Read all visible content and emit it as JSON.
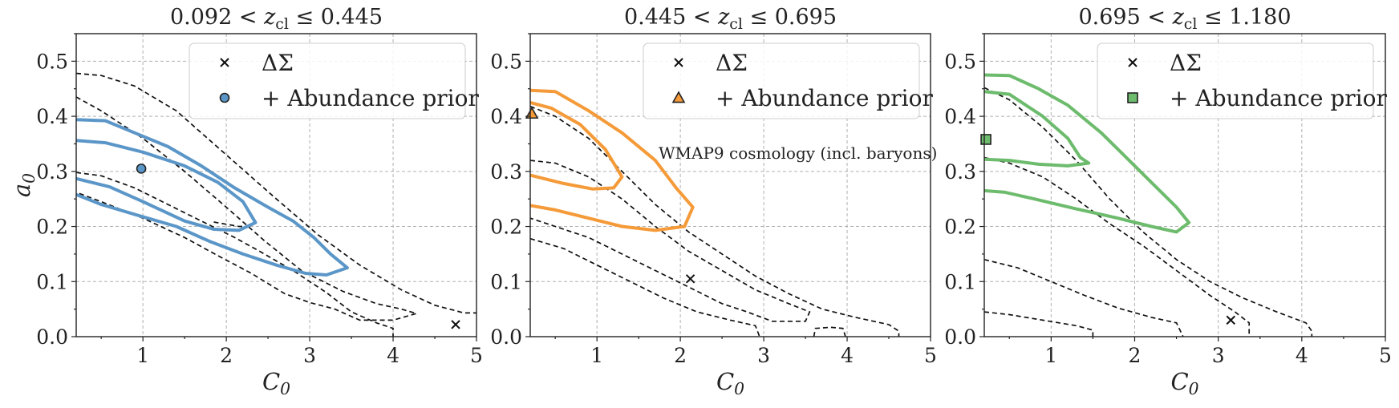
{
  "chart_data": [
    {
      "type": "scatter",
      "title": "0.092 < z_cl ≤ 0.445",
      "xlabel": "C_0",
      "ylabel": "a_0",
      "xlim": [
        0.2,
        5
      ],
      "ylim": [
        0,
        0.55
      ],
      "xticks": [
        "1",
        "2",
        "3",
        "4",
        "5"
      ],
      "yticks": [
        "0.0",
        "0.1",
        "0.2",
        "0.3",
        "0.4",
        "0.5"
      ],
      "grid": true,
      "color": "#5b96c8",
      "marker": "circle",
      "legend": {
        "position": "top-right",
        "entries": [
          "ΔΣ",
          "+ Abundance prior"
        ]
      },
      "delta_sigma_point": {
        "x": 4.75,
        "y": 0.022
      },
      "prior_point": {
        "x": 0.98,
        "y": 0.305
      },
      "black_contours": [
        [
          [
            0.2,
            0.478
          ],
          [
            0.5,
            0.474
          ],
          [
            0.9,
            0.455
          ],
          [
            1.4,
            0.41
          ],
          [
            2,
            0.33
          ],
          [
            2.6,
            0.25
          ],
          [
            3.1,
            0.185
          ],
          [
            3.6,
            0.13
          ],
          [
            4.1,
            0.085
          ],
          [
            4.5,
            0.057
          ],
          [
            4.85,
            0.043
          ],
          [
            5,
            0.043
          ]
        ],
        [
          [
            0.2,
            0.435
          ],
          [
            0.5,
            0.41
          ],
          [
            1,
            0.36
          ],
          [
            1.5,
            0.3
          ],
          [
            2,
            0.235
          ],
          [
            2.45,
            0.175
          ],
          [
            2.9,
            0.12
          ],
          [
            3.4,
            0.082
          ],
          [
            3.8,
            0.06
          ],
          [
            4.1,
            0.05
          ],
          [
            4.28,
            0.042
          ],
          [
            4,
            0.03
          ],
          [
            3.6,
            0.03
          ],
          [
            3.3,
            0.05
          ],
          [
            3,
            0.062
          ],
          [
            2.7,
            0.078
          ],
          [
            2.3,
            0.115
          ],
          [
            1.9,
            0.147
          ],
          [
            1.5,
            0.18
          ],
          [
            1,
            0.215
          ],
          [
            0.5,
            0.245
          ],
          [
            0.2,
            0.262
          ]
        ],
        [
          [
            0.2,
            0.298
          ],
          [
            0.5,
            0.292
          ],
          [
            0.9,
            0.27
          ],
          [
            1.3,
            0.24
          ],
          [
            1.7,
            0.21
          ],
          [
            2.1,
            0.18
          ],
          [
            2.4,
            0.155
          ],
          [
            2.8,
            0.12
          ],
          [
            3.2,
            0.08
          ],
          [
            3.5,
            0.045
          ],
          [
            3.8,
            0.025
          ],
          [
            4,
            0.015
          ],
          [
            4,
            0
          ]
        ],
        [
          [
            1.85,
            0.208
          ],
          [
            2.15,
            0.2
          ],
          [
            2.3,
            0.2
          ]
        ]
      ],
      "colored_contours": [
        [
          [
            0.2,
            0.394
          ],
          [
            0.55,
            0.392
          ],
          [
            0.9,
            0.37
          ],
          [
            1.3,
            0.345
          ],
          [
            1.7,
            0.31
          ],
          [
            2.1,
            0.27
          ],
          [
            2.5,
            0.235
          ],
          [
            2.8,
            0.21
          ],
          [
            3.05,
            0.18
          ],
          [
            3.25,
            0.15
          ],
          [
            3.45,
            0.125
          ],
          [
            3.2,
            0.112
          ],
          [
            2.95,
            0.115
          ],
          [
            2.6,
            0.13
          ],
          [
            2.2,
            0.15
          ],
          [
            1.8,
            0.173
          ],
          [
            1.4,
            0.2
          ],
          [
            0.9,
            0.222
          ],
          [
            0.5,
            0.24
          ],
          [
            0.2,
            0.258
          ]
        ],
        [
          [
            0.2,
            0.356
          ],
          [
            0.55,
            0.352
          ],
          [
            1,
            0.335
          ],
          [
            1.5,
            0.31
          ],
          [
            1.9,
            0.28
          ],
          [
            2.2,
            0.245
          ],
          [
            2.35,
            0.207
          ],
          [
            2.15,
            0.193
          ],
          [
            1.85,
            0.195
          ],
          [
            1.5,
            0.21
          ],
          [
            1,
            0.245
          ],
          [
            0.6,
            0.272
          ],
          [
            0.2,
            0.287
          ]
        ]
      ]
    },
    {
      "type": "scatter",
      "title": "0.445 < z_cl ≤ 0.695",
      "xlabel": "C_0",
      "ylabel": "",
      "xlim": [
        0.2,
        5
      ],
      "ylim": [
        0,
        0.55
      ],
      "xticks": [
        "1",
        "2",
        "3",
        "4",
        "5"
      ],
      "yticks": [
        "0.0",
        "0.1",
        "0.2",
        "0.3",
        "0.4",
        "0.5"
      ],
      "grid": true,
      "color": "#f59a38",
      "marker": "triangle",
      "legend": {
        "position": "top-right",
        "entries": [
          "ΔΣ",
          "+ Abundance prior"
        ]
      },
      "annotation": "WMAP9 cosmology (incl. baryons)",
      "delta_sigma_point": {
        "x": 2.12,
        "y": 0.105
      },
      "prior_point": {
        "x": 0.22,
        "y": 0.405
      },
      "black_contours": [
        [
          [
            0.2,
            0.418
          ],
          [
            0.5,
            0.4
          ],
          [
            0.9,
            0.36
          ],
          [
            1.3,
            0.3
          ],
          [
            1.7,
            0.24
          ],
          [
            2.1,
            0.19
          ],
          [
            2.5,
            0.15
          ],
          [
            2.9,
            0.11
          ],
          [
            3.3,
            0.078
          ],
          [
            3.7,
            0.05
          ],
          [
            4.1,
            0.035
          ],
          [
            4.5,
            0.022
          ],
          [
            4.62,
            0.01
          ],
          [
            4.62,
            0
          ]
        ],
        [
          [
            0.2,
            0.32
          ],
          [
            0.5,
            0.315
          ],
          [
            0.9,
            0.29
          ],
          [
            1.3,
            0.25
          ],
          [
            1.7,
            0.2
          ],
          [
            2.1,
            0.155
          ],
          [
            2.5,
            0.12
          ],
          [
            2.9,
            0.085
          ],
          [
            3.3,
            0.06
          ],
          [
            3.55,
            0.045
          ],
          [
            3.5,
            0.028
          ],
          [
            3.1,
            0.028
          ],
          [
            2.8,
            0.045
          ],
          [
            2.5,
            0.06
          ],
          [
            2.1,
            0.09
          ],
          [
            1.7,
            0.12
          ],
          [
            1.3,
            0.15
          ],
          [
            0.9,
            0.18
          ],
          [
            0.5,
            0.2
          ],
          [
            0.2,
            0.215
          ]
        ],
        [
          [
            0.2,
            0.178
          ],
          [
            0.6,
            0.16
          ],
          [
            1,
            0.13
          ],
          [
            1.4,
            0.1
          ],
          [
            1.8,
            0.07
          ],
          [
            2.2,
            0.045
          ],
          [
            2.6,
            0.03
          ],
          [
            2.9,
            0.02
          ],
          [
            2.95,
            0
          ]
        ],
        [
          [
            3.6,
            0
          ],
          [
            3.62,
            0.015
          ],
          [
            3.8,
            0.017
          ],
          [
            3.95,
            0.015
          ],
          [
            3.98,
            0
          ]
        ]
      ],
      "colored_contours": [
        [
          [
            0.2,
            0.447
          ],
          [
            0.5,
            0.445
          ],
          [
            0.9,
            0.41
          ],
          [
            1.3,
            0.37
          ],
          [
            1.7,
            0.32
          ],
          [
            1.95,
            0.27
          ],
          [
            2.15,
            0.235
          ],
          [
            2.05,
            0.2
          ],
          [
            1.7,
            0.193
          ],
          [
            1.3,
            0.2
          ],
          [
            0.9,
            0.215
          ],
          [
            0.5,
            0.23
          ],
          [
            0.2,
            0.238
          ]
        ],
        [
          [
            0.2,
            0.425
          ],
          [
            0.45,
            0.415
          ],
          [
            0.8,
            0.385
          ],
          [
            1.1,
            0.34
          ],
          [
            1.3,
            0.29
          ],
          [
            1.2,
            0.27
          ],
          [
            0.95,
            0.268
          ],
          [
            0.6,
            0.278
          ],
          [
            0.2,
            0.293
          ]
        ]
      ]
    },
    {
      "type": "scatter",
      "title": "0.695 < z_cl ≤ 1.180",
      "xlabel": "C_0",
      "ylabel": "",
      "xlim": [
        0.2,
        5
      ],
      "ylim": [
        0,
        0.55
      ],
      "xticks": [
        "1",
        "2",
        "3",
        "4",
        "5"
      ],
      "yticks": [
        "0.0",
        "0.1",
        "0.2",
        "0.3",
        "0.4",
        "0.5"
      ],
      "grid": true,
      "color": "#6dbb6d",
      "marker": "square",
      "legend": {
        "position": "top-right",
        "entries": [
          "ΔΣ",
          "+ Abundance prior"
        ]
      },
      "delta_sigma_point": {
        "x": 3.15,
        "y": 0.03
      },
      "prior_point": {
        "x": 0.22,
        "y": 0.358
      },
      "black_contours": [
        [
          [
            0.2,
            0.452
          ],
          [
            0.5,
            0.43
          ],
          [
            0.9,
            0.38
          ],
          [
            1.3,
            0.32
          ],
          [
            1.7,
            0.25
          ],
          [
            2.1,
            0.19
          ],
          [
            2.5,
            0.14
          ],
          [
            2.9,
            0.1
          ],
          [
            3.3,
            0.07
          ],
          [
            3.7,
            0.045
          ],
          [
            4.05,
            0.025
          ],
          [
            4.12,
            0.01
          ],
          [
            4.12,
            0
          ]
        ],
        [
          [
            0.2,
            0.325
          ],
          [
            0.5,
            0.315
          ],
          [
            0.9,
            0.29
          ],
          [
            1.3,
            0.25
          ],
          [
            1.7,
            0.205
          ],
          [
            2.1,
            0.165
          ],
          [
            2.5,
            0.12
          ],
          [
            2.9,
            0.075
          ],
          [
            3.2,
            0.045
          ],
          [
            3.37,
            0.025
          ],
          [
            3.37,
            0
          ]
        ],
        [
          [
            0.2,
            0.14
          ],
          [
            0.6,
            0.125
          ],
          [
            1,
            0.1
          ],
          [
            1.4,
            0.075
          ],
          [
            1.8,
            0.052
          ],
          [
            2.2,
            0.035
          ],
          [
            2.5,
            0.025
          ],
          [
            2.58,
            0
          ]
        ],
        [
          [
            0.2,
            0.045
          ],
          [
            0.5,
            0.04
          ],
          [
            0.9,
            0.03
          ],
          [
            1.3,
            0.02
          ],
          [
            1.5,
            0.012
          ],
          [
            1.5,
            0
          ]
        ]
      ],
      "colored_contours": [
        [
          [
            0.2,
            0.475
          ],
          [
            0.5,
            0.474
          ],
          [
            0.85,
            0.45
          ],
          [
            1.2,
            0.42
          ],
          [
            1.6,
            0.37
          ],
          [
            2,
            0.31
          ],
          [
            2.3,
            0.265
          ],
          [
            2.5,
            0.235
          ],
          [
            2.65,
            0.207
          ],
          [
            2.5,
            0.19
          ],
          [
            2.2,
            0.2
          ],
          [
            1.8,
            0.215
          ],
          [
            1.3,
            0.232
          ],
          [
            0.8,
            0.25
          ],
          [
            0.45,
            0.262
          ],
          [
            0.2,
            0.265
          ]
        ],
        [
          [
            0.2,
            0.445
          ],
          [
            0.5,
            0.44
          ],
          [
            0.9,
            0.4
          ],
          [
            1.2,
            0.36
          ],
          [
            1.35,
            0.325
          ],
          [
            1.45,
            0.315
          ],
          [
            1.2,
            0.31
          ],
          [
            0.85,
            0.313
          ],
          [
            0.5,
            0.32
          ],
          [
            0.2,
            0.322
          ]
        ]
      ]
    }
  ]
}
